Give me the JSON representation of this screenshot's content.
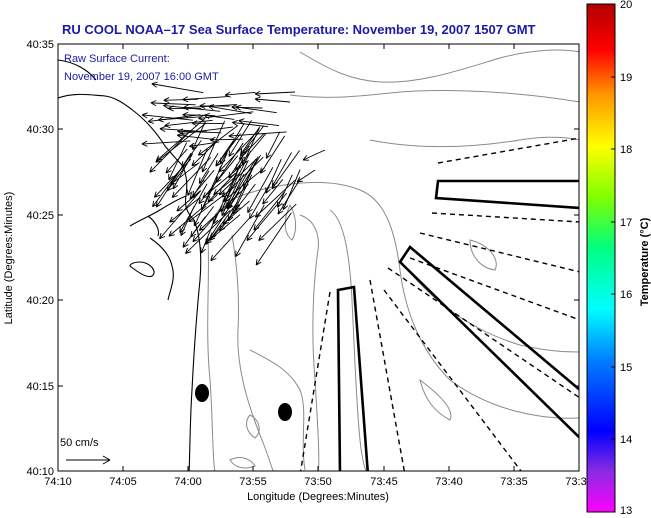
{
  "title": "RU COOL  NOAA–17  Sea Surface Temperature:  November 19, 2007 1507 GMT",
  "current_note": {
    "line1": "Raw Surface Current:",
    "line2": "November 19, 2007 16:00 GMT"
  },
  "scale_label": "50 cm/s",
  "axes": {
    "xlabel": "Longitude (Degrees:Minutes)",
    "ylabel": "Latitude (Degrees:Minutes)",
    "x_ticks": [
      "74:10",
      "74:05",
      "74:00",
      "73:55",
      "73:50",
      "73:45",
      "73:40",
      "73:35",
      "73:3"
    ],
    "y_ticks": [
      "40:35",
      "40:30",
      "40:25",
      "40:20",
      "40:15",
      "40:10"
    ]
  },
  "colorbar": {
    "label": "Temperature (°C)",
    "ticks": [
      "20",
      "19",
      "18",
      "17",
      "16",
      "15",
      "14",
      "13"
    ],
    "min": 13,
    "max": 20
  },
  "colors": {
    "title": "#1a1aa8",
    "coastline": "#000000",
    "bathymetry_contours": "#8a8a8a"
  }
}
